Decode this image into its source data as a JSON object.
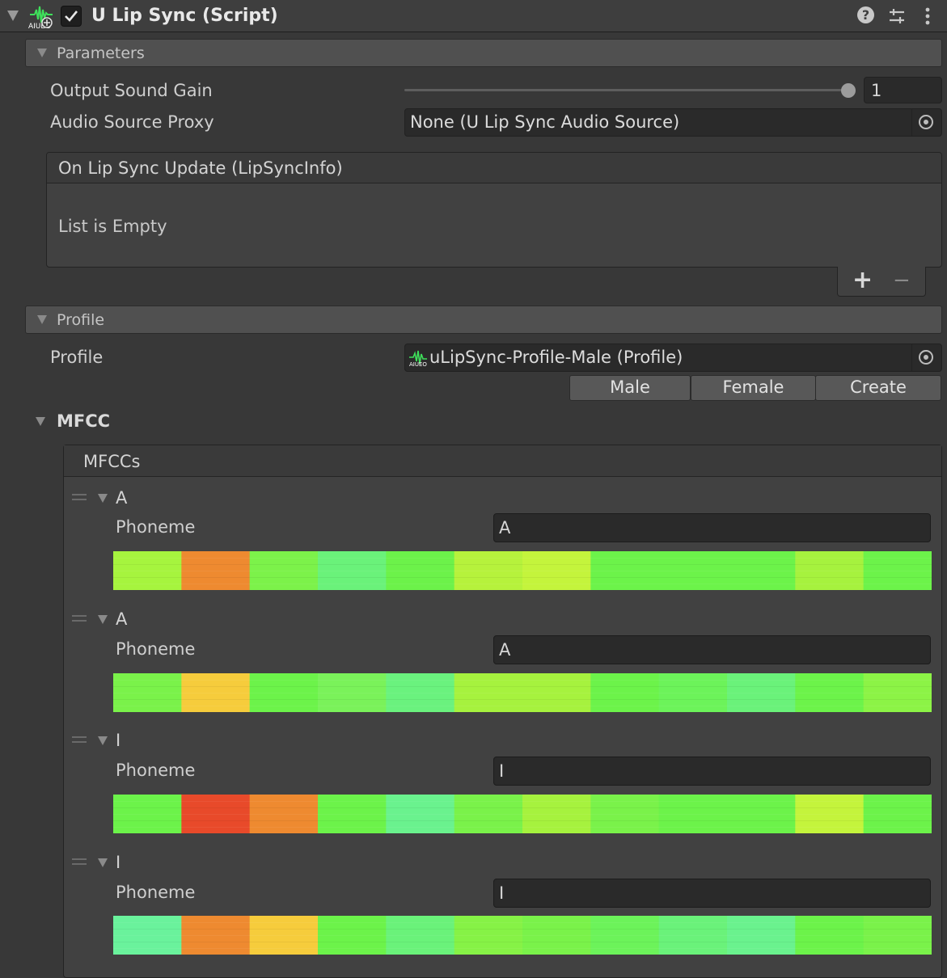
{
  "component": {
    "title": "U Lip Sync (Script)",
    "enabled": true,
    "icon": "ulipsync-waveform-icon",
    "header_icons": [
      "help-icon",
      "preset-icon",
      "kebab-menu-icon"
    ]
  },
  "parameters": {
    "section_label": "Parameters",
    "output_sound_gain": {
      "label": "Output Sound Gain",
      "value": "1",
      "slider_fraction": 1.0
    },
    "audio_source_proxy": {
      "label": "Audio Source Proxy",
      "value": "None (U Lip Sync Audio Source)"
    },
    "on_lip_sync_update": {
      "title": "On Lip Sync Update (LipSyncInfo)",
      "empty_text": "List is Empty",
      "add": "+",
      "remove": "−"
    }
  },
  "profile": {
    "section_label": "Profile",
    "field_label": "Profile",
    "value": "uLipSync-Profile-Male (Profile)",
    "buttons": [
      "Male",
      "Female",
      "Create"
    ]
  },
  "mfcc": {
    "foldout_label": "MFCC",
    "list_title": "MFCCs",
    "field_label": "Phoneme",
    "items": [
      {
        "name": "A",
        "phoneme": "A",
        "colors": [
          "#a6f43e",
          "#ee8a30",
          "#7cf24a",
          "#6af27a",
          "#6cf24a",
          "#b6f23c",
          "#c4f43c",
          "#6cf34a",
          "#6cf34a",
          "#6cf34a",
          "#a6f23e",
          "#6cf34a"
        ]
      },
      {
        "name": "A",
        "phoneme": "A",
        "colors": [
          "#7af24a",
          "#f6cc3c",
          "#6cf34a",
          "#7af25a",
          "#6af27e",
          "#a6f23e",
          "#a6f23e",
          "#6cf34a",
          "#6cf35a",
          "#6af27a",
          "#6cf34a",
          "#8cf346"
        ]
      },
      {
        "name": "I",
        "phoneme": "I",
        "colors": [
          "#6cf34a",
          "#e84a2a",
          "#ee8a30",
          "#6cf34a",
          "#6af28e",
          "#7af24a",
          "#a6f23e",
          "#7af24a",
          "#6cf34a",
          "#6cf34a",
          "#c4f43c",
          "#6cf34a"
        ]
      },
      {
        "name": "I",
        "phoneme": "I",
        "colors": [
          "#6af29c",
          "#ee8a30",
          "#f6cc3c",
          "#6cf34a",
          "#6af27a",
          "#86f246",
          "#7af24a",
          "#6cf35a",
          "#6af27a",
          "#6af28e",
          "#6cf34a",
          "#7af24a"
        ]
      }
    ]
  }
}
